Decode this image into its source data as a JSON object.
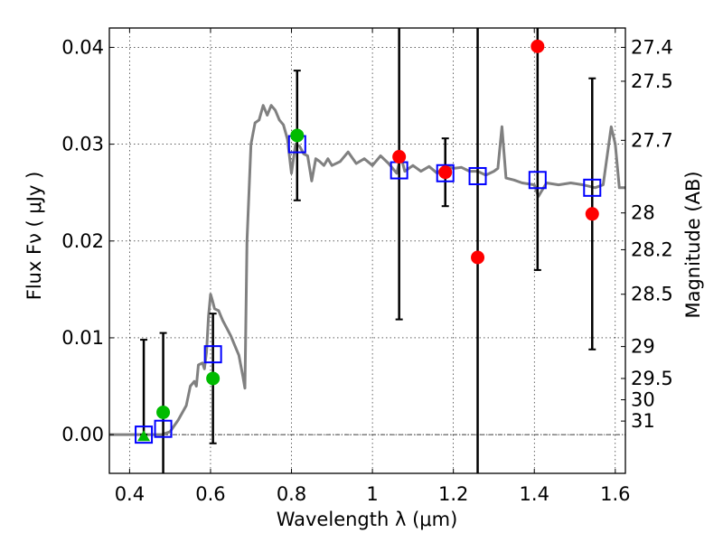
{
  "chart_data": {
    "type": "scatter",
    "xlabel": "Wavelength  λ (μm)",
    "ylabel": "Flux  Fν  ( μJy )",
    "y2label": "Magnitude (AB)",
    "xlim": [
      0.35,
      1.625
    ],
    "ylim": [
      -0.004,
      0.042
    ],
    "grid": true,
    "x_ticks": [
      0.4,
      0.6,
      0.8,
      1.0,
      1.2,
      1.4,
      1.6
    ],
    "x_tick_labels": [
      "0.4",
      "0.6",
      "0.8",
      "1",
      "1.2",
      "1.4",
      "1.6"
    ],
    "y_ticks": [
      0.0,
      0.01,
      0.02,
      0.03,
      0.04
    ],
    "y_tick_labels": [
      "0.00",
      "0.01",
      "0.02",
      "0.03",
      "0.04"
    ],
    "y2_ticks": [
      {
        "label": "27.4",
        "flux": 0.04
      },
      {
        "label": "27.5",
        "flux": 0.0365
      },
      {
        "label": "27.7",
        "flux": 0.0304
      },
      {
        "label": "28",
        "flux": 0.0229
      },
      {
        "label": "28.2",
        "flux": 0.0191
      },
      {
        "label": "28.5",
        "flux": 0.0145
      },
      {
        "label": "29",
        "flux": 0.0091
      },
      {
        "label": "29.5",
        "flux": 0.0058
      },
      {
        "label": "30",
        "flux": 0.0036
      },
      {
        "label": "31",
        "flux": 0.0014
      }
    ],
    "zero_line": 0.0,
    "colors": {
      "model": "#808080",
      "model_bands": "#0000ff",
      "detections_optical": "#00bb00",
      "detections_nir": "#ff0000",
      "errorbars": "#000000"
    },
    "series": [
      {
        "name": "model-spectrum",
        "type": "line",
        "points": [
          [
            0.35,
            0.0
          ],
          [
            0.48,
            0.0
          ],
          [
            0.5,
            0.0003
          ],
          [
            0.52,
            0.0015
          ],
          [
            0.54,
            0.003
          ],
          [
            0.55,
            0.005
          ],
          [
            0.56,
            0.0055
          ],
          [
            0.565,
            0.005
          ],
          [
            0.57,
            0.0072
          ],
          [
            0.58,
            0.0074
          ],
          [
            0.585,
            0.0068
          ],
          [
            0.59,
            0.0085
          ],
          [
            0.595,
            0.0122
          ],
          [
            0.6,
            0.0145
          ],
          [
            0.605,
            0.0138
          ],
          [
            0.61,
            0.013
          ],
          [
            0.62,
            0.0128
          ],
          [
            0.63,
            0.0118
          ],
          [
            0.64,
            0.011
          ],
          [
            0.65,
            0.0102
          ],
          [
            0.66,
            0.0092
          ],
          [
            0.67,
            0.0082
          ],
          [
            0.68,
            0.006
          ],
          [
            0.685,
            0.0048
          ],
          [
            0.69,
            0.02
          ],
          [
            0.7,
            0.03
          ],
          [
            0.71,
            0.0322
          ],
          [
            0.72,
            0.0325
          ],
          [
            0.73,
            0.034
          ],
          [
            0.74,
            0.033
          ],
          [
            0.75,
            0.034
          ],
          [
            0.76,
            0.0335
          ],
          [
            0.77,
            0.0325
          ],
          [
            0.78,
            0.032
          ],
          [
            0.79,
            0.0305
          ],
          [
            0.8,
            0.027
          ],
          [
            0.81,
            0.03
          ],
          [
            0.82,
            0.0298
          ],
          [
            0.83,
            0.029
          ],
          [
            0.84,
            0.0288
          ],
          [
            0.85,
            0.0262
          ],
          [
            0.86,
            0.0285
          ],
          [
            0.87,
            0.0282
          ],
          [
            0.88,
            0.0278
          ],
          [
            0.89,
            0.0285
          ],
          [
            0.9,
            0.0278
          ],
          [
            0.92,
            0.0282
          ],
          [
            0.94,
            0.0292
          ],
          [
            0.96,
            0.028
          ],
          [
            0.98,
            0.0285
          ],
          [
            1.0,
            0.0278
          ],
          [
            1.02,
            0.0288
          ],
          [
            1.04,
            0.028
          ],
          [
            1.06,
            0.027
          ],
          [
            1.07,
            0.0288
          ],
          [
            1.08,
            0.0272
          ],
          [
            1.1,
            0.0278
          ],
          [
            1.12,
            0.0272
          ],
          [
            1.14,
            0.0277
          ],
          [
            1.16,
            0.027
          ],
          [
            1.18,
            0.0278
          ],
          [
            1.2,
            0.0275
          ],
          [
            1.22,
            0.0276
          ],
          [
            1.24,
            0.0272
          ],
          [
            1.26,
            0.0272
          ],
          [
            1.28,
            0.0268
          ],
          [
            1.3,
            0.0272
          ],
          [
            1.31,
            0.0275
          ],
          [
            1.32,
            0.0318
          ],
          [
            1.33,
            0.0265
          ],
          [
            1.35,
            0.0263
          ],
          [
            1.37,
            0.026
          ],
          [
            1.4,
            0.0258
          ],
          [
            1.41,
            0.0246
          ],
          [
            1.43,
            0.026
          ],
          [
            1.46,
            0.0258
          ],
          [
            1.49,
            0.026
          ],
          [
            1.52,
            0.0258
          ],
          [
            1.55,
            0.0255
          ],
          [
            1.57,
            0.0258
          ],
          [
            1.59,
            0.0318
          ],
          [
            1.6,
            0.03
          ],
          [
            1.61,
            0.0255
          ],
          [
            1.625,
            0.0255
          ]
        ]
      },
      {
        "name": "model-band-fluxes",
        "type": "scatter",
        "marker": "square-open",
        "points": [
          [
            0.435,
            0.0
          ],
          [
            0.483,
            0.0006
          ],
          [
            0.606,
            0.0083
          ],
          [
            0.814,
            0.03
          ],
          [
            1.066,
            0.0273
          ],
          [
            1.18,
            0.027
          ],
          [
            1.26,
            0.0267
          ],
          [
            1.408,
            0.0263
          ],
          [
            1.543,
            0.0255
          ]
        ]
      },
      {
        "name": "optical-detections",
        "type": "scatter",
        "marker": "circle-filled",
        "points": [
          {
            "x": 0.483,
            "y": 0.0023,
            "err_low": -0.006,
            "err_high": 0.0105
          },
          {
            "x": 0.606,
            "y": 0.0058,
            "err_low": -0.0009,
            "err_high": 0.0125
          },
          {
            "x": 0.814,
            "y": 0.0309,
            "err_low": 0.0242,
            "err_high": 0.0376
          }
        ]
      },
      {
        "name": "optical-upper",
        "type": "scatter",
        "marker": "triangle-filled",
        "points": [
          {
            "x": 0.435,
            "y": -0.0002,
            "err_low": 0.0,
            "err_high": 0.0098
          }
        ]
      },
      {
        "name": "nir-detections",
        "type": "scatter",
        "marker": "circle-filled",
        "points": [
          {
            "x": 1.066,
            "y": 0.0287,
            "err_low": 0.0119,
            "err_high": 0.046
          },
          {
            "x": 1.18,
            "y": 0.0271,
            "err_low": 0.0236,
            "err_high": 0.0306
          },
          {
            "x": 1.26,
            "y": 0.0183,
            "err_low": -0.006,
            "err_high": 0.046
          },
          {
            "x": 1.408,
            "y": 0.0401,
            "err_low": 0.017,
            "err_high": 0.046
          },
          {
            "x": 1.543,
            "y": 0.0228,
            "err_low": 0.0088,
            "err_high": 0.0368
          }
        ]
      }
    ]
  }
}
